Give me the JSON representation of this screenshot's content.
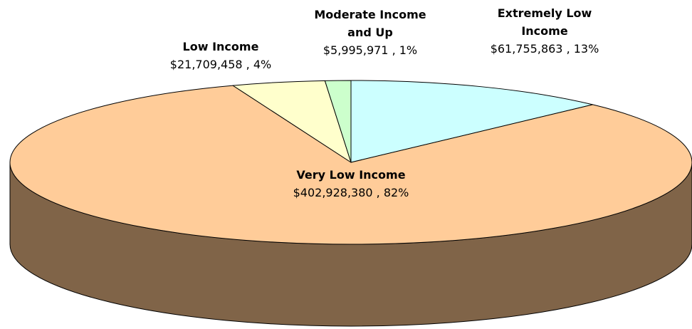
{
  "chart_data": {
    "type": "pie",
    "categories": [
      "Extremely Low Income",
      "Very Low Income",
      "Low Income",
      "Moderate Income and Up"
    ],
    "values": [
      61755863,
      402928380,
      21709458,
      5995971
    ],
    "value_labels": [
      "$61,755,863 , 13%",
      "$402,928,380 , 82%",
      "$21,709,458 , 4%",
      "$5,995,971 , 1%"
    ],
    "colors": [
      "#ccffff",
      "#ffcc99",
      "#ffffcc",
      "#ccffcc"
    ],
    "side_color": "#806448"
  }
}
